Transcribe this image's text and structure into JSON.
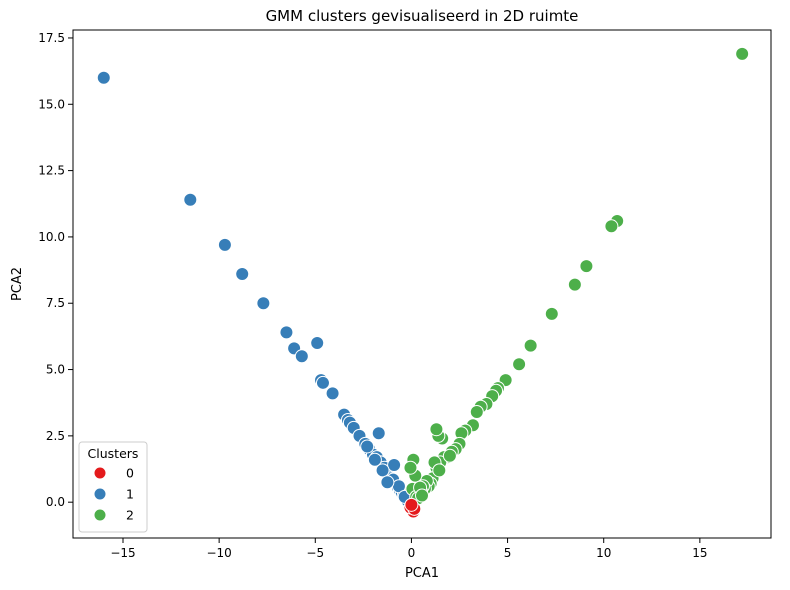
{
  "chart_data": {
    "type": "scatter",
    "title": "GMM clusters gevisualiseerd in 2D ruimte",
    "xlabel": "PCA1",
    "ylabel": "PCA2",
    "xlim": [
      -17.6,
      18.7
    ],
    "ylim": [
      -1.35,
      17.8
    ],
    "xticks": [
      -15,
      -10,
      -5,
      0,
      5,
      10,
      15
    ],
    "xtick_labels": [
      "−15",
      "−10",
      "−5",
      "0",
      "5",
      "10",
      "15"
    ],
    "yticks": [
      0.0,
      2.5,
      5.0,
      7.5,
      10.0,
      12.5,
      15.0,
      17.5
    ],
    "ytick_labels": [
      "0.0",
      "2.5",
      "5.0",
      "7.5",
      "10.0",
      "12.5",
      "15.0",
      "17.5"
    ],
    "grid": false,
    "legend": {
      "title": "Clusters",
      "placement": "lower-left",
      "entries": [
        {
          "label": "0",
          "color": "#e41a1c"
        },
        {
          "label": "1",
          "color": "#377eb8"
        },
        {
          "label": "2",
          "color": "#4daf4a"
        }
      ]
    },
    "series": [
      {
        "cluster": "0",
        "color": "#e41a1c",
        "points": [
          [
            0.05,
            -0.3
          ],
          [
            0.1,
            -0.35
          ],
          [
            -0.05,
            -0.2
          ],
          [
            0.15,
            -0.25
          ],
          [
            0.0,
            -0.1
          ]
        ]
      },
      {
        "cluster": "1",
        "color": "#377eb8",
        "points": [
          [
            -16.0,
            16.0
          ],
          [
            -11.5,
            11.4
          ],
          [
            -9.7,
            9.7
          ],
          [
            -8.8,
            8.6
          ],
          [
            -7.7,
            7.5
          ],
          [
            -6.5,
            6.4
          ],
          [
            -6.1,
            5.8
          ],
          [
            -5.7,
            5.5
          ],
          [
            -4.9,
            6.0
          ],
          [
            -4.7,
            4.6
          ],
          [
            -4.6,
            4.5
          ],
          [
            -4.1,
            4.1
          ],
          [
            -3.5,
            3.3
          ],
          [
            -3.3,
            3.1
          ],
          [
            -3.2,
            3.0
          ],
          [
            -3.0,
            2.8
          ],
          [
            -2.7,
            2.5
          ],
          [
            -2.4,
            2.2
          ],
          [
            -2.2,
            2.0
          ],
          [
            -2.0,
            1.8
          ],
          [
            -1.8,
            1.7
          ],
          [
            -1.7,
            2.6
          ],
          [
            -1.6,
            1.5
          ],
          [
            -1.4,
            1.3
          ],
          [
            -1.3,
            1.1
          ],
          [
            -1.2,
            1.0
          ],
          [
            -1.1,
            0.9
          ],
          [
            -1.0,
            0.8
          ],
          [
            -0.9,
            1.4
          ],
          [
            -0.8,
            0.7
          ],
          [
            -0.7,
            0.55
          ],
          [
            -0.6,
            0.45
          ],
          [
            -0.5,
            0.35
          ],
          [
            -0.4,
            0.25
          ],
          [
            -0.3,
            0.15
          ],
          [
            -0.2,
            0.05
          ],
          [
            -1.5,
            1.2
          ],
          [
            -1.9,
            1.6
          ],
          [
            -2.3,
            2.1
          ],
          [
            -0.95,
            0.85
          ],
          [
            -0.65,
            0.6
          ],
          [
            -0.35,
            0.2
          ],
          [
            -1.25,
            0.75
          ]
        ]
      },
      {
        "cluster": "2",
        "color": "#4daf4a",
        "points": [
          [
            17.2,
            16.9
          ],
          [
            10.7,
            10.6
          ],
          [
            10.4,
            10.4
          ],
          [
            9.1,
            8.9
          ],
          [
            8.5,
            8.2
          ],
          [
            7.3,
            7.1
          ],
          [
            6.2,
            5.9
          ],
          [
            5.6,
            5.2
          ],
          [
            4.9,
            4.6
          ],
          [
            4.5,
            4.3
          ],
          [
            4.4,
            4.2
          ],
          [
            4.2,
            4.0
          ],
          [
            3.9,
            3.7
          ],
          [
            3.6,
            3.6
          ],
          [
            3.4,
            3.4
          ],
          [
            3.2,
            2.9
          ],
          [
            2.8,
            2.7
          ],
          [
            2.6,
            2.6
          ],
          [
            2.5,
            2.2
          ],
          [
            2.3,
            2.0
          ],
          [
            2.1,
            1.9
          ],
          [
            1.9,
            1.7
          ],
          [
            1.7,
            1.7
          ],
          [
            1.6,
            2.4
          ],
          [
            1.4,
            2.5
          ],
          [
            1.3,
            2.75
          ],
          [
            1.5,
            1.5
          ],
          [
            1.3,
            1.3
          ],
          [
            1.2,
            1.5
          ],
          [
            1.1,
            0.9
          ],
          [
            1.0,
            0.7
          ],
          [
            0.9,
            0.6
          ],
          [
            0.8,
            0.8
          ],
          [
            0.7,
            0.5
          ],
          [
            0.6,
            0.6
          ],
          [
            0.5,
            0.4
          ],
          [
            0.4,
            0.3
          ],
          [
            0.3,
            0.45
          ],
          [
            0.2,
            1.0
          ],
          [
            0.1,
            1.6
          ],
          [
            -0.05,
            1.3
          ],
          [
            0.05,
            0.5
          ],
          [
            0.25,
            0.2
          ],
          [
            1.45,
            1.2
          ],
          [
            2.0,
            1.75
          ],
          [
            0.45,
            0.55
          ],
          [
            0.35,
            0.15
          ],
          [
            0.55,
            0.25
          ]
        ]
      }
    ]
  }
}
